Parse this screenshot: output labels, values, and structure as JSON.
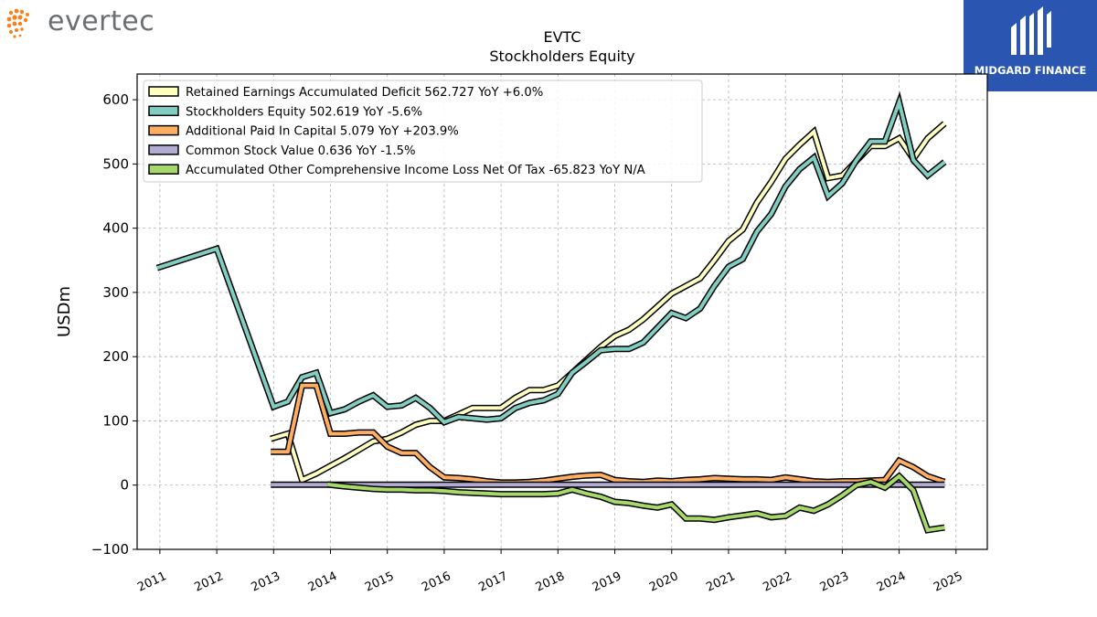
{
  "branding": {
    "left_logo_text": "evertec",
    "left_logo_color": "#f58220",
    "right_logo_text": "MIDGARD FINANCE",
    "right_logo_bg": "#2a55b0"
  },
  "chart_data": {
    "type": "line",
    "title": "EVTC",
    "subtitle": "Stockholders  Equity",
    "ylabel": "USDm",
    "xlabel": "",
    "ylim": [
      -100,
      640
    ],
    "xlim": [
      2010.6,
      2025.55
    ],
    "yticks": [
      -100,
      0,
      100,
      200,
      300,
      400,
      500,
      600
    ],
    "xticks": [
      "2011",
      "2012",
      "2013",
      "2014",
      "2015",
      "2016",
      "2017",
      "2018",
      "2019",
      "2020",
      "2021",
      "2022",
      "2023",
      "2024",
      "2025"
    ],
    "grid": true,
    "legend_position": "top-left",
    "series": [
      {
        "name": "Retained Earnings Accumulated Deficit",
        "legend": "Retained Earnings Accumulated Deficit  562.727 YoY +6.0%",
        "color": "#ffffbf",
        "points": [
          [
            2012.95,
            72
          ],
          [
            2013.25,
            80
          ],
          [
            2013.5,
            8
          ],
          [
            2013.75,
            18
          ],
          [
            2014.0,
            30
          ],
          [
            2014.25,
            42
          ],
          [
            2014.5,
            55
          ],
          [
            2014.75,
            68
          ],
          [
            2015.0,
            72
          ],
          [
            2015.25,
            82
          ],
          [
            2015.5,
            94
          ],
          [
            2015.75,
            100
          ],
          [
            2016.0,
            100
          ],
          [
            2016.25,
            110
          ],
          [
            2016.5,
            120
          ],
          [
            2016.75,
            120
          ],
          [
            2017.0,
            120
          ],
          [
            2017.25,
            136
          ],
          [
            2017.5,
            148
          ],
          [
            2017.75,
            148
          ],
          [
            2018.0,
            155
          ],
          [
            2018.25,
            175
          ],
          [
            2018.5,
            195
          ],
          [
            2018.75,
            215
          ],
          [
            2019.0,
            232
          ],
          [
            2019.25,
            242
          ],
          [
            2019.5,
            258
          ],
          [
            2019.75,
            278
          ],
          [
            2020.0,
            298
          ],
          [
            2020.25,
            310
          ],
          [
            2020.5,
            322
          ],
          [
            2020.75,
            350
          ],
          [
            2021.0,
            380
          ],
          [
            2021.25,
            398
          ],
          [
            2021.5,
            440
          ],
          [
            2021.75,
            472
          ],
          [
            2022.0,
            508
          ],
          [
            2022.25,
            530
          ],
          [
            2022.5,
            550
          ],
          [
            2022.75,
            478
          ],
          [
            2023.0,
            482
          ],
          [
            2023.25,
            505
          ],
          [
            2023.5,
            528
          ],
          [
            2023.75,
            528
          ],
          [
            2024.0,
            540
          ],
          [
            2024.25,
            508
          ],
          [
            2024.5,
            540
          ],
          [
            2024.8,
            563
          ]
        ]
      },
      {
        "name": "Stockholders Equity",
        "legend": "Stockholders Equity  502.619 YoY -5.6%",
        "color": "#80cdc1",
        "points": [
          [
            2010.95,
            338
          ],
          [
            2012.0,
            368
          ],
          [
            2013.0,
            122
          ],
          [
            2013.25,
            130
          ],
          [
            2013.5,
            168
          ],
          [
            2013.75,
            175
          ],
          [
            2014.0,
            112
          ],
          [
            2014.25,
            118
          ],
          [
            2014.5,
            130
          ],
          [
            2014.75,
            140
          ],
          [
            2015.0,
            122
          ],
          [
            2015.25,
            124
          ],
          [
            2015.5,
            136
          ],
          [
            2015.75,
            120
          ],
          [
            2016.0,
            98
          ],
          [
            2016.25,
            106
          ],
          [
            2016.5,
            104
          ],
          [
            2016.75,
            102
          ],
          [
            2017.0,
            104
          ],
          [
            2017.25,
            120
          ],
          [
            2017.5,
            128
          ],
          [
            2017.75,
            132
          ],
          [
            2018.0,
            142
          ],
          [
            2018.25,
            175
          ],
          [
            2018.5,
            192
          ],
          [
            2018.75,
            210
          ],
          [
            2019.0,
            212
          ],
          [
            2019.25,
            212
          ],
          [
            2019.5,
            222
          ],
          [
            2019.75,
            245
          ],
          [
            2020.0,
            268
          ],
          [
            2020.25,
            260
          ],
          [
            2020.5,
            275
          ],
          [
            2020.75,
            310
          ],
          [
            2021.0,
            340
          ],
          [
            2021.25,
            352
          ],
          [
            2021.5,
            395
          ],
          [
            2021.75,
            422
          ],
          [
            2022.0,
            465
          ],
          [
            2022.25,
            492
          ],
          [
            2022.5,
            510
          ],
          [
            2022.75,
            450
          ],
          [
            2023.0,
            470
          ],
          [
            2023.25,
            506
          ],
          [
            2023.5,
            535
          ],
          [
            2023.75,
            535
          ],
          [
            2024.0,
            596
          ],
          [
            2024.25,
            506
          ],
          [
            2024.5,
            482
          ],
          [
            2024.8,
            503
          ]
        ]
      },
      {
        "name": "Additional Paid In Capital",
        "legend": "Additional Paid In Capital  5.079 YoY +203.9%",
        "color": "#fdae61",
        "points": [
          [
            2012.95,
            52
          ],
          [
            2013.25,
            52
          ],
          [
            2013.5,
            155
          ],
          [
            2013.75,
            155
          ],
          [
            2014.0,
            80
          ],
          [
            2014.25,
            80
          ],
          [
            2014.5,
            82
          ],
          [
            2014.75,
            82
          ],
          [
            2015.0,
            60
          ],
          [
            2015.25,
            50
          ],
          [
            2015.5,
            50
          ],
          [
            2015.75,
            28
          ],
          [
            2016.0,
            12
          ],
          [
            2016.25,
            11
          ],
          [
            2016.5,
            9
          ],
          [
            2016.75,
            6
          ],
          [
            2017.0,
            4
          ],
          [
            2017.25,
            4
          ],
          [
            2017.5,
            5
          ],
          [
            2017.75,
            7
          ],
          [
            2018.0,
            10
          ],
          [
            2018.25,
            13
          ],
          [
            2018.5,
            15
          ],
          [
            2018.75,
            16
          ],
          [
            2019.0,
            8
          ],
          [
            2019.25,
            6
          ],
          [
            2019.5,
            5
          ],
          [
            2019.75,
            7
          ],
          [
            2020.0,
            6
          ],
          [
            2020.25,
            8
          ],
          [
            2020.5,
            9
          ],
          [
            2020.75,
            11
          ],
          [
            2021.0,
            10
          ],
          [
            2021.25,
            9
          ],
          [
            2021.5,
            9
          ],
          [
            2021.75,
            8
          ],
          [
            2022.0,
            12
          ],
          [
            2022.25,
            9
          ],
          [
            2022.5,
            6
          ],
          [
            2022.75,
            5
          ],
          [
            2023.0,
            6
          ],
          [
            2023.25,
            6
          ],
          [
            2023.5,
            7
          ],
          [
            2023.75,
            8
          ],
          [
            2024.0,
            38
          ],
          [
            2024.25,
            28
          ],
          [
            2024.5,
            14
          ],
          [
            2024.8,
            5
          ]
        ]
      },
      {
        "name": "Common Stock Value",
        "legend": "Common Stock Value  0.636 YoY -1.5%",
        "color": "#b2abd2",
        "points": [
          [
            2012.95,
            0.8
          ],
          [
            2013.25,
            0.8
          ],
          [
            2013.5,
            0.8
          ],
          [
            2013.75,
            0.8
          ],
          [
            2014.0,
            0.8
          ],
          [
            2014.5,
            0.8
          ],
          [
            2015.0,
            0.8
          ],
          [
            2015.5,
            0.8
          ],
          [
            2016.0,
            0.8
          ],
          [
            2016.5,
            0.7
          ],
          [
            2017.0,
            0.7
          ],
          [
            2017.5,
            0.7
          ],
          [
            2018.0,
            0.7
          ],
          [
            2018.5,
            0.7
          ],
          [
            2019.0,
            0.7
          ],
          [
            2019.5,
            0.7
          ],
          [
            2020.0,
            0.7
          ],
          [
            2020.5,
            0.7
          ],
          [
            2021.0,
            0.7
          ],
          [
            2021.5,
            0.7
          ],
          [
            2022.0,
            0.7
          ],
          [
            2022.5,
            0.7
          ],
          [
            2023.0,
            0.7
          ],
          [
            2023.5,
            0.6
          ],
          [
            2024.0,
            0.6
          ],
          [
            2024.5,
            0.6
          ],
          [
            2024.8,
            0.6
          ]
        ]
      },
      {
        "name": "Accumulated Other Comprehensive Income Loss Net Of Tax",
        "legend": "Accumulated Other Comprehensive Income Loss Net Of Tax  -65.823 YoY N/A",
        "color": "#a6d96a",
        "points": [
          [
            2013.95,
            1
          ],
          [
            2014.25,
            -2
          ],
          [
            2014.5,
            -4
          ],
          [
            2014.75,
            -6
          ],
          [
            2015.0,
            -7
          ],
          [
            2015.25,
            -7
          ],
          [
            2015.5,
            -8
          ],
          [
            2015.75,
            -8
          ],
          [
            2016.0,
            -9
          ],
          [
            2016.25,
            -11
          ],
          [
            2016.5,
            -12
          ],
          [
            2016.75,
            -13
          ],
          [
            2017.0,
            -14
          ],
          [
            2017.25,
            -14
          ],
          [
            2017.5,
            -14
          ],
          [
            2017.75,
            -14
          ],
          [
            2018.0,
            -13
          ],
          [
            2018.25,
            -7
          ],
          [
            2018.5,
            -13
          ],
          [
            2018.75,
            -18
          ],
          [
            2019.0,
            -26
          ],
          [
            2019.25,
            -28
          ],
          [
            2019.5,
            -32
          ],
          [
            2019.75,
            -35
          ],
          [
            2020.0,
            -30
          ],
          [
            2020.25,
            -52
          ],
          [
            2020.5,
            -52
          ],
          [
            2020.75,
            -54
          ],
          [
            2021.0,
            -50
          ],
          [
            2021.25,
            -47
          ],
          [
            2021.5,
            -44
          ],
          [
            2021.75,
            -50
          ],
          [
            2022.0,
            -48
          ],
          [
            2022.25,
            -35
          ],
          [
            2022.5,
            -40
          ],
          [
            2022.75,
            -30
          ],
          [
            2023.0,
            -16
          ],
          [
            2023.25,
            0
          ],
          [
            2023.5,
            5
          ],
          [
            2023.75,
            -4
          ],
          [
            2024.0,
            14
          ],
          [
            2024.25,
            -8
          ],
          [
            2024.5,
            -70
          ],
          [
            2024.8,
            -66
          ]
        ]
      }
    ]
  }
}
